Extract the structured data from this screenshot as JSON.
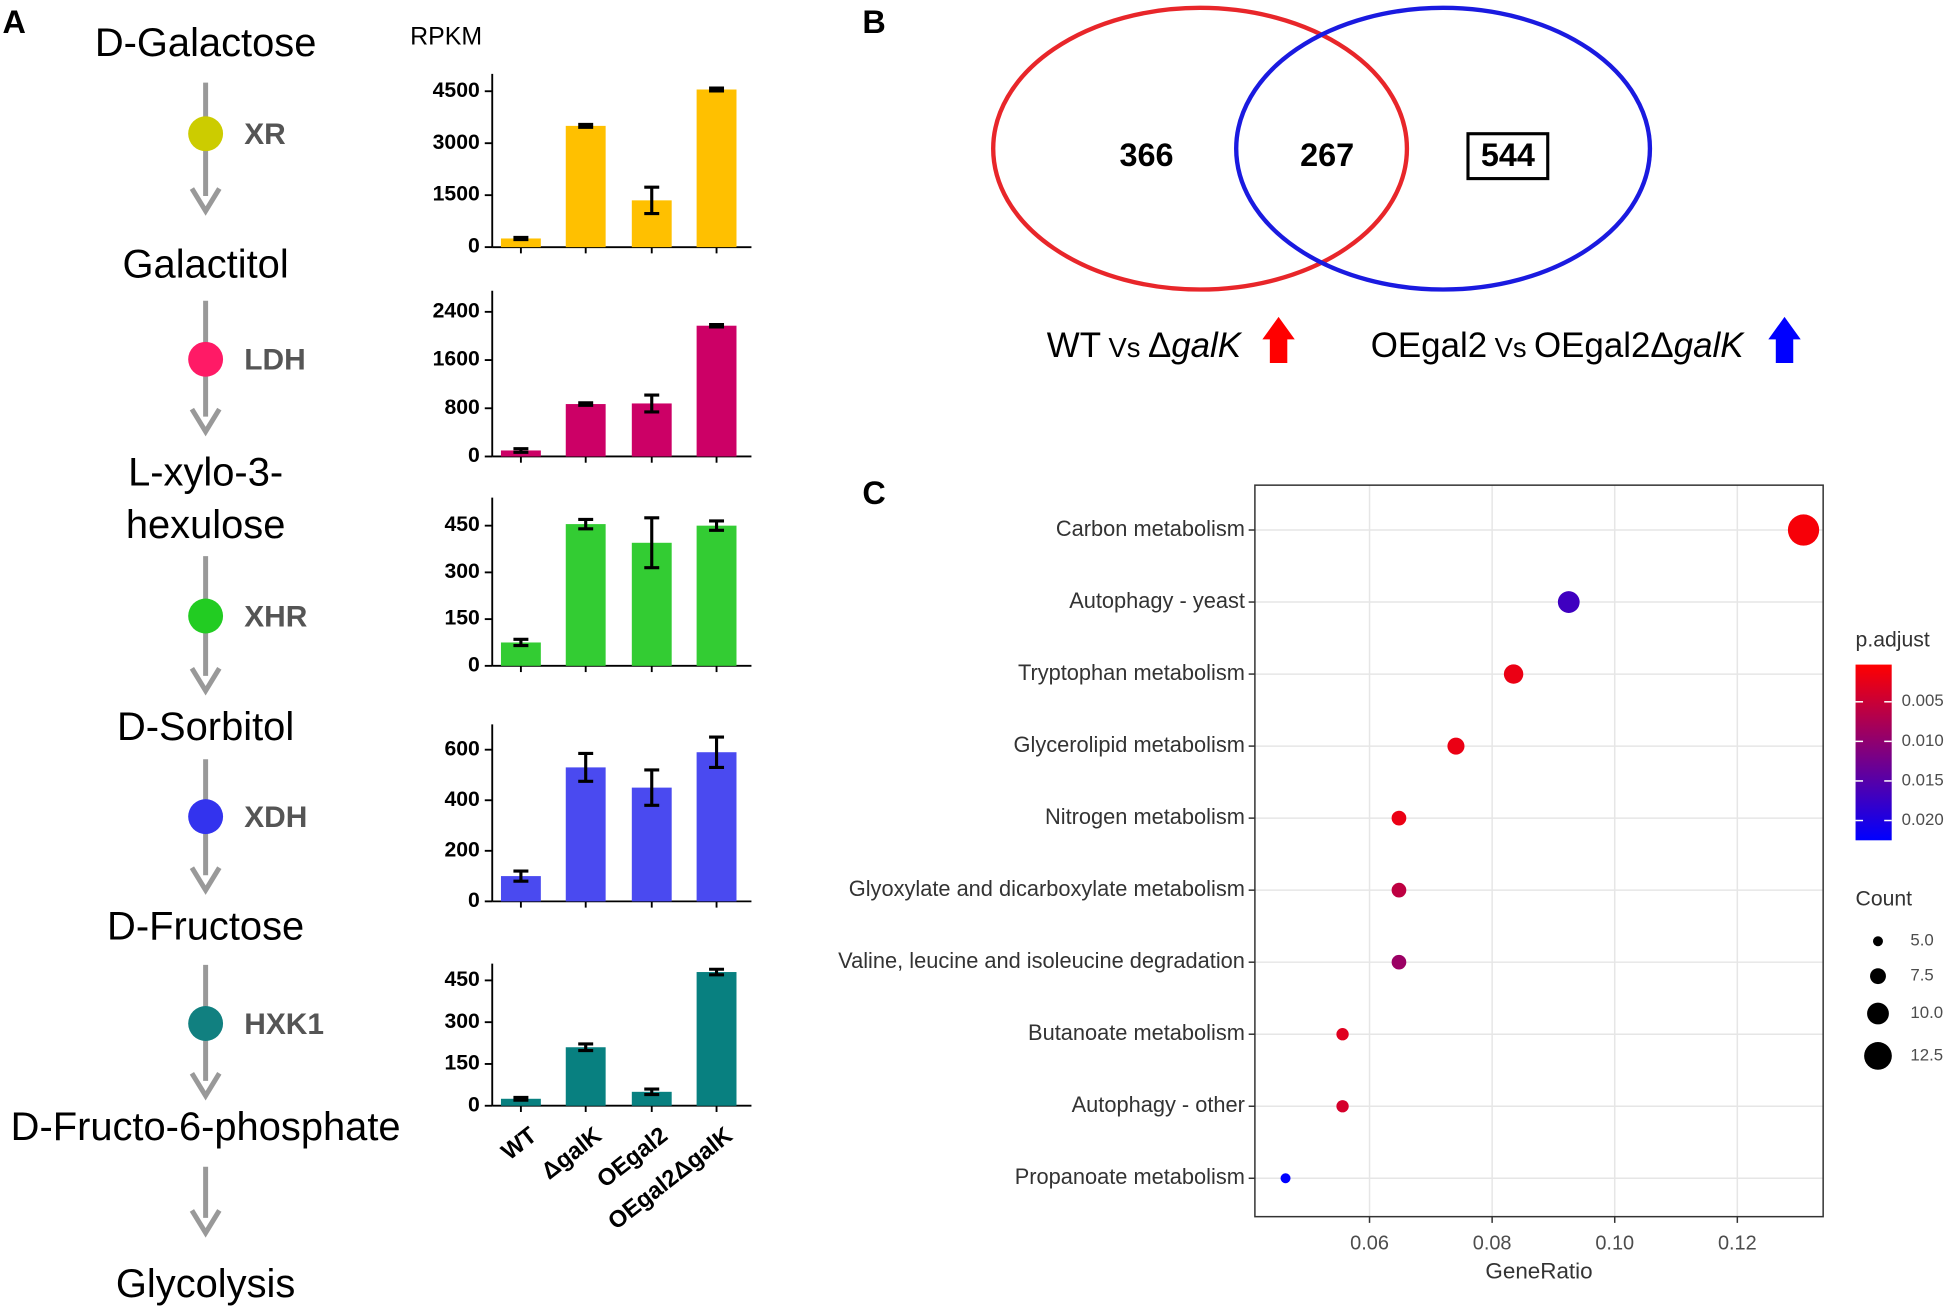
{
  "panels": [
    "A",
    "B",
    "C"
  ],
  "pathway": {
    "compounds": [
      "D-Galactose",
      "Galactitol",
      [
        "L-xylo-3-",
        "hexulose"
      ],
      "D-Sorbitol",
      "D-Fructose",
      "D-Fructo-6-phosphate",
      "Glycolysis"
    ],
    "enzymes": [
      {
        "name": "XR",
        "color": "#CCCC00"
      },
      {
        "name": "LDH",
        "color": "#FF1A66"
      },
      {
        "name": "XHR",
        "color": "#22CC22"
      },
      {
        "name": "XDH",
        "color": "#3333EE"
      },
      {
        "name": "HXK1",
        "color": "#118080"
      }
    ]
  },
  "venn": {
    "counts": {
      "left": 366,
      "both": 267,
      "right": 544
    },
    "sets": [
      {
        "parts": [
          "WT",
          "Vs",
          "Δ",
          "galK"
        ],
        "color": "#E8262A",
        "arrow_color": "#FF0000"
      },
      {
        "parts": [
          "OEgal2",
          "Vs",
          "OEgal2Δ",
          "galK"
        ],
        "color": "#1A1AE0",
        "arrow_color": "#0000FF"
      }
    ]
  },
  "chart_data": [
    {
      "type": "bar",
      "ylabel": "RPKM",
      "color": "#FFC000",
      "values": [
        250,
        3500,
        1350,
        4550
      ],
      "errors": [
        30,
        40,
        380,
        40
      ],
      "ylim": [
        0,
        5000
      ],
      "yticks": [
        0,
        1500,
        3000,
        4500
      ]
    },
    {
      "type": "bar",
      "color": "#CC0066",
      "values": [
        100,
        870,
        880,
        2170
      ],
      "errors": [
        30,
        20,
        140,
        20
      ],
      "ylim": [
        0,
        2750
      ],
      "yticks": [
        0,
        800,
        1600,
        2400
      ]
    },
    {
      "type": "bar",
      "color": "#33CC33",
      "values": [
        75,
        455,
        395,
        450
      ],
      "errors": [
        10,
        15,
        80,
        15
      ],
      "ylim": [
        0,
        540
      ],
      "yticks": [
        0,
        150,
        300,
        450
      ]
    },
    {
      "type": "bar",
      "color": "#4A4AF0",
      "values": [
        100,
        530,
        450,
        590
      ],
      "errors": [
        20,
        55,
        70,
        60
      ],
      "ylim": [
        0,
        700
      ],
      "yticks": [
        0,
        200,
        400,
        600
      ]
    },
    {
      "type": "bar",
      "color": "#088080",
      "categories": [
        "WT",
        "ΔgalK",
        "OEgal2",
        "OEgal2ΔgalK"
      ],
      "values": [
        25,
        210,
        50,
        480
      ],
      "errors": [
        5,
        12,
        10,
        10
      ],
      "ylim": [
        0,
        510
      ],
      "yticks": [
        0,
        150,
        300,
        450
      ]
    },
    {
      "type": "dot",
      "xlabel": "GeneRatio",
      "categories": [
        "Carbon metabolism",
        "Autophagy - yeast",
        "Tryptophan metabolism",
        "Glycerolipid metabolism",
        "Nitrogen metabolism",
        "Glyoxylate and dicarboxylate metabolism",
        "Valine, leucine and isoleucine degradation",
        "Butanoate metabolism",
        "Autophagy - other",
        "Propanoate metabolism"
      ],
      "x": [
        0.1308,
        0.0925,
        0.0835,
        0.0741,
        0.0648,
        0.0648,
        0.0648,
        0.0556,
        0.0556,
        0.0463
      ],
      "count": [
        14,
        10,
        9,
        8,
        7,
        7,
        7,
        6,
        6,
        5
      ],
      "p_adjust": [
        0.001,
        0.017,
        0.002,
        0.002,
        0.002,
        0.006,
        0.009,
        0.003,
        0.004,
        0.0225
      ],
      "xlim": [
        0.0413,
        0.134
      ],
      "xticks": [
        0.06,
        0.08,
        {
          "value": 0.1,
          "label": "0.10"
        },
        0.12
      ],
      "grid": true,
      "color_title": "p.adjust",
      "color_range": [
        "#FF0000",
        "#0000FF"
      ],
      "clim": [
        0.0003,
        0.0225
      ],
      "cticks": [
        0.005,
        {
          "value": 0.01,
          "label": "0.010"
        },
        0.015,
        {
          "value": 0.02,
          "label": "0.020"
        }
      ],
      "size_title": "Count",
      "size_ticks": [
        {
          "value": 5,
          "label": "5.0"
        },
        7.5,
        {
          "value": 10,
          "label": "10.0"
        },
        12.5
      ]
    }
  ]
}
